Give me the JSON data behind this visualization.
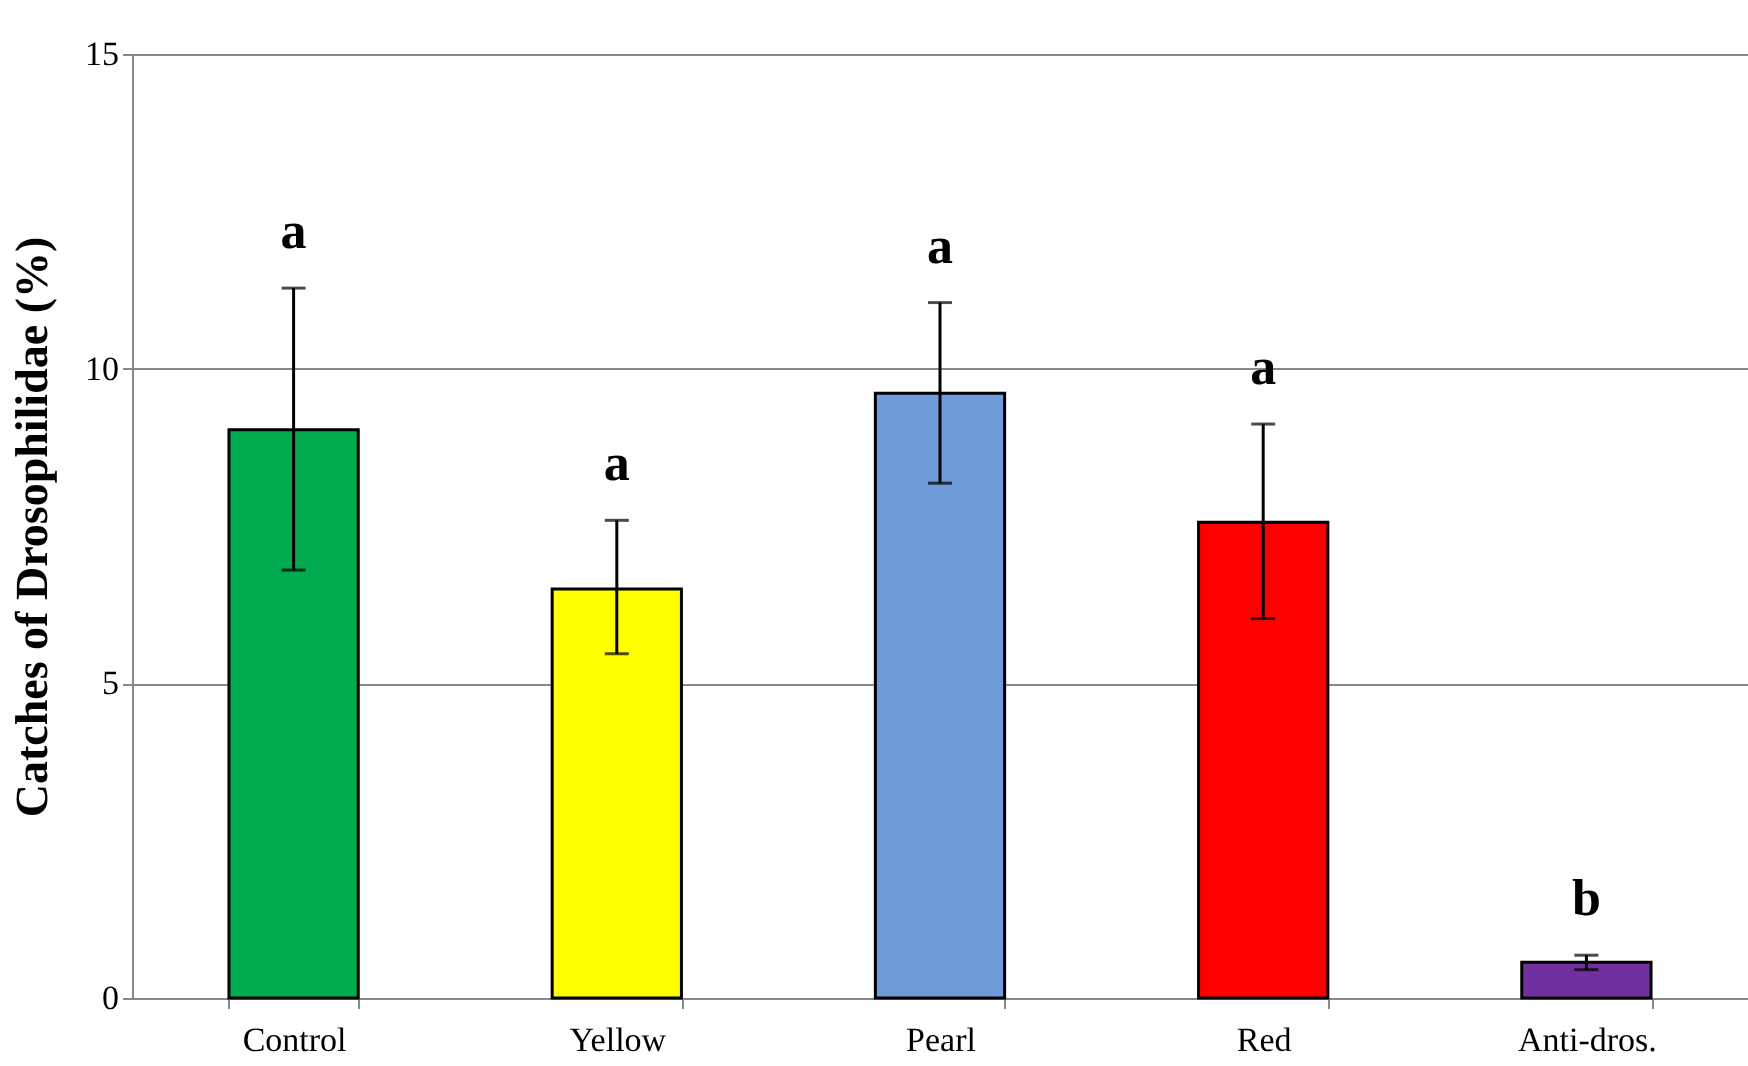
{
  "chart_data": {
    "type": "bar",
    "ylabel": "Catches of Drosophilidae (%)",
    "categories": [
      "Control",
      "Yellow",
      "Pearl",
      "Red",
      "Anti-dros."
    ],
    "values": [
      9.03,
      6.5,
      9.61,
      7.56,
      0.57
    ],
    "errors": [
      [
        6.8,
        11.28
      ],
      [
        5.47,
        7.59
      ],
      [
        8.18,
        11.05
      ],
      [
        6.03,
        9.12
      ],
      [
        0.45,
        0.68
      ]
    ],
    "colors": [
      "#00aa4f",
      "#ffff00",
      "#6f9bdb",
      "#ff0000",
      "#7030a0"
    ],
    "ylim": [
      0,
      15
    ],
    "yticks": [
      0,
      5,
      10,
      15
    ],
    "grid": "y",
    "annotations": [
      "a",
      "a",
      "a",
      "a",
      "b"
    ]
  }
}
